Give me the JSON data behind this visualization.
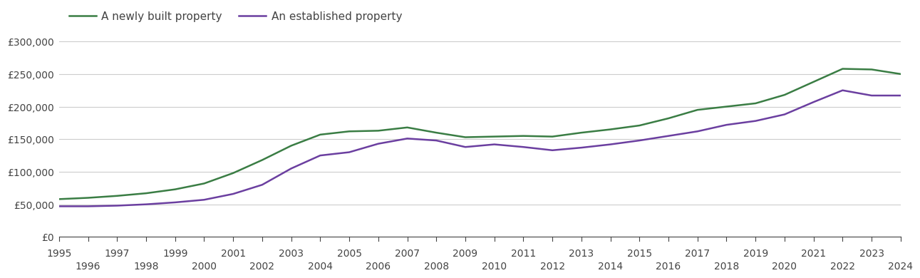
{
  "newly_built": {
    "years": [
      1995,
      1996,
      1997,
      1998,
      1999,
      2000,
      2001,
      2002,
      2003,
      2004,
      2005,
      2006,
      2007,
      2008,
      2009,
      2010,
      2011,
      2012,
      2013,
      2014,
      2015,
      2016,
      2017,
      2018,
      2019,
      2020,
      2021,
      2022,
      2023,
      2024
    ],
    "values": [
      58000,
      60000,
      63000,
      67000,
      73000,
      82000,
      98000,
      118000,
      140000,
      157000,
      162000,
      163000,
      168000,
      160000,
      153000,
      154000,
      155000,
      154000,
      160000,
      165000,
      171000,
      182000,
      195000,
      200000,
      205000,
      218000,
      238000,
      258000,
      257000,
      250000
    ]
  },
  "established": {
    "years": [
      1995,
      1996,
      1997,
      1998,
      1999,
      2000,
      2001,
      2002,
      2003,
      2004,
      2005,
      2006,
      2007,
      2008,
      2009,
      2010,
      2011,
      2012,
      2013,
      2014,
      2015,
      2016,
      2017,
      2018,
      2019,
      2020,
      2021,
      2022,
      2023,
      2024
    ],
    "values": [
      47000,
      47000,
      48000,
      50000,
      53000,
      57000,
      66000,
      80000,
      105000,
      125000,
      130000,
      143000,
      151000,
      148000,
      138000,
      142000,
      138000,
      133000,
      137000,
      142000,
      148000,
      155000,
      162000,
      172000,
      178000,
      188000,
      207000,
      225000,
      217000,
      217000
    ]
  },
  "newly_built_color": "#3a7d44",
  "established_color": "#6b3fa0",
  "newly_built_label": "A newly built property",
  "established_label": "An established property",
  "ylim": [
    0,
    320000
  ],
  "yticks": [
    0,
    50000,
    100000,
    150000,
    200000,
    250000,
    300000
  ],
  "ytick_labels": [
    "£0",
    "£50,000",
    "£100,000",
    "£150,000",
    "£200,000",
    "£250,000",
    "£300,000"
  ],
  "xticks_odd": [
    1995,
    1997,
    1999,
    2001,
    2003,
    2005,
    2007,
    2009,
    2011,
    2013,
    2015,
    2017,
    2019,
    2021,
    2023
  ],
  "xticks_even": [
    1996,
    1998,
    2000,
    2002,
    2004,
    2006,
    2008,
    2010,
    2012,
    2014,
    2016,
    2018,
    2020,
    2022,
    2024
  ],
  "grid_color": "#cccccc",
  "background_color": "#ffffff",
  "line_width": 1.8,
  "text_color": "#444444",
  "tick_fontsize": 10,
  "legend_fontsize": 11
}
